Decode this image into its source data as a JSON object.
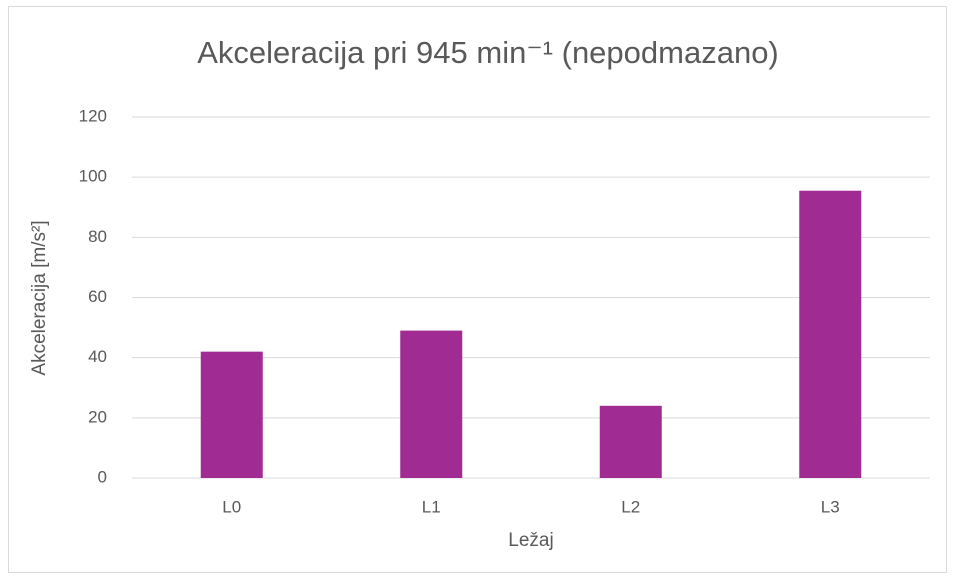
{
  "chart_data": {
    "type": "bar",
    "title": "Akceleracija pri 945 min⁻¹ (nepodmazano)",
    "x_label": "Ležaj",
    "y_label": "Akceleracija [m/s²]",
    "categories": [
      "L0",
      "L1",
      "L2",
      "L3"
    ],
    "values": [
      42,
      49,
      24,
      95.5
    ],
    "color": "#a02b93",
    "ylim": [
      0,
      120
    ],
    "yticks": [
      0,
      20,
      40,
      60,
      80,
      100,
      120
    ],
    "grid": true
  }
}
